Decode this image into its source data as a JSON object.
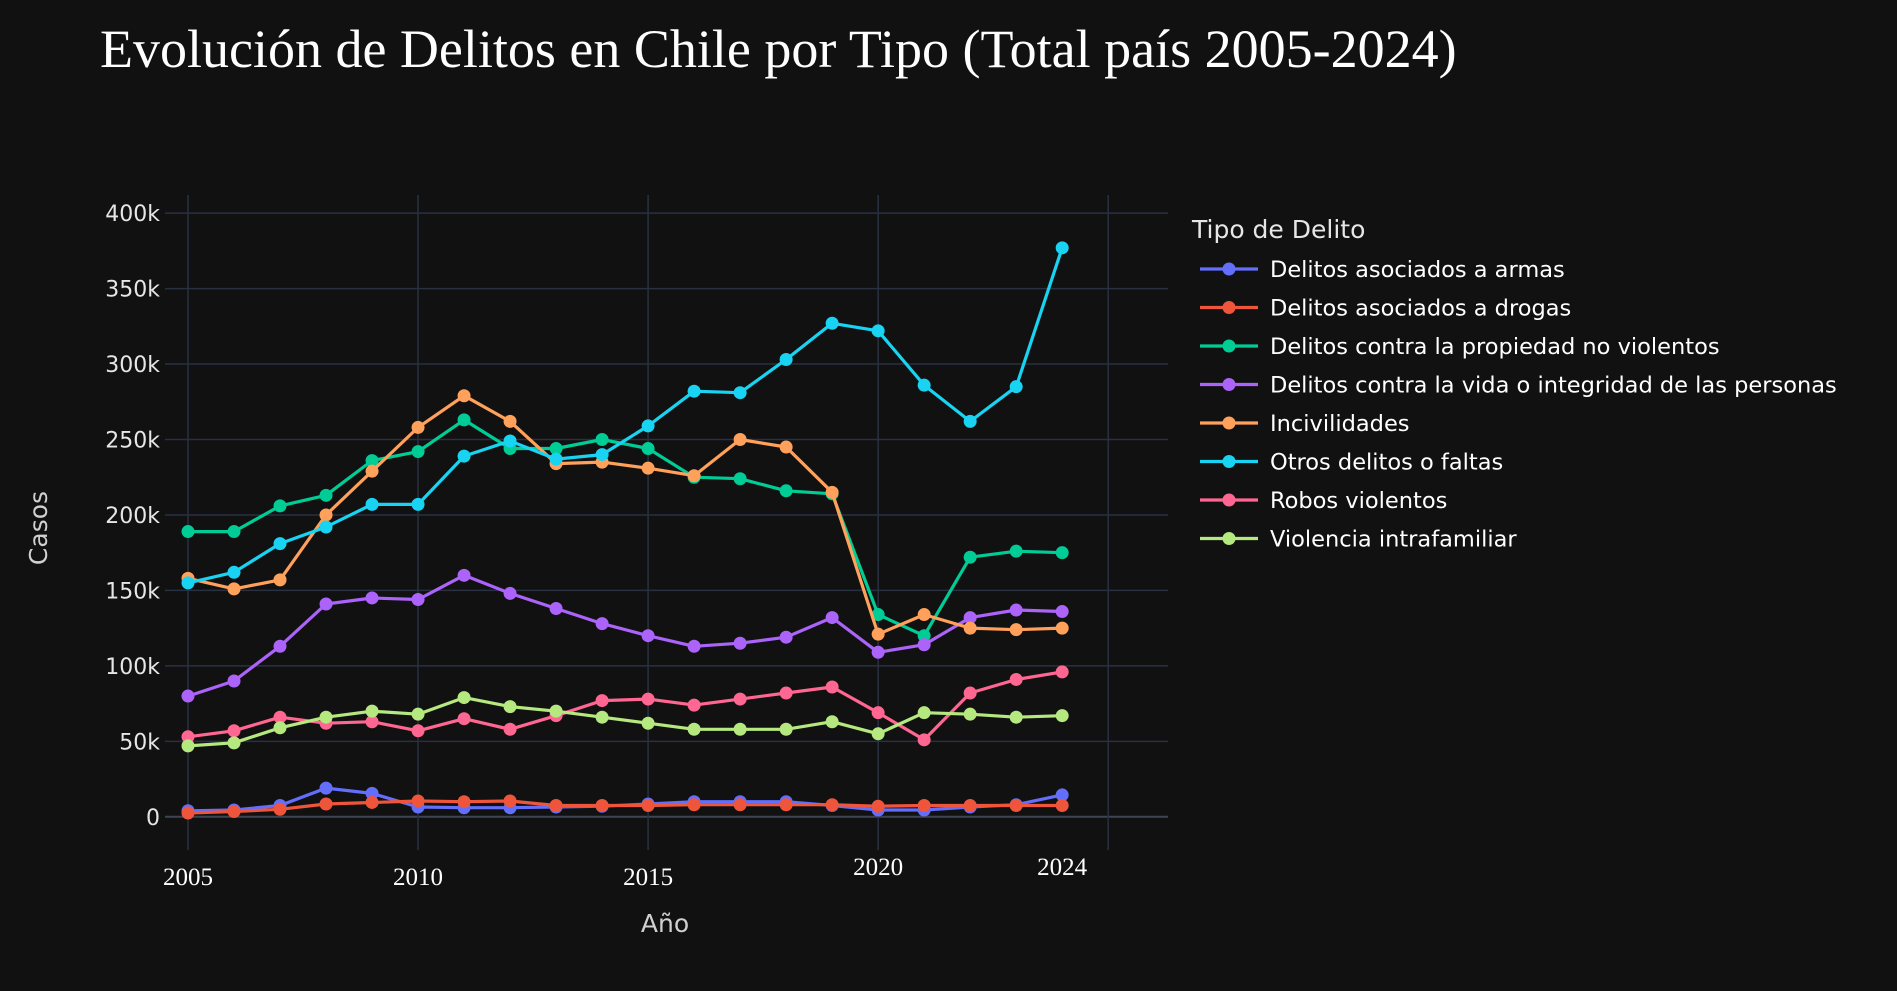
{
  "chart_data": {
    "type": "line",
    "title": "Evolución de Delitos en Chile por Tipo (Total país 2005-2024)",
    "xlabel": "Año",
    "ylabel": "Casos",
    "legend_title": "Tipo de Delito",
    "legend_position": "right",
    "grid": true,
    "xlim": [
      2004.5,
      2026.3
    ],
    "ylim": [
      -22000,
      412000
    ],
    "x_ticks": [
      2005,
      2010,
      2015,
      2020,
      2024
    ],
    "y_ticks": [
      {
        "value": 0,
        "label": "0"
      },
      {
        "value": 50000,
        "label": "50k"
      },
      {
        "value": 100000,
        "label": "100k"
      },
      {
        "value": 150000,
        "label": "150k"
      },
      {
        "value": 200000,
        "label": "200k"
      },
      {
        "value": 250000,
        "label": "250k"
      },
      {
        "value": 300000,
        "label": "300k"
      },
      {
        "value": 350000,
        "label": "350k"
      },
      {
        "value": 400000,
        "label": "400k"
      }
    ],
    "x": [
      2005,
      2006,
      2007,
      2008,
      2009,
      2010,
      2011,
      2012,
      2013,
      2014,
      2015,
      2016,
      2017,
      2018,
      2019,
      2020,
      2021,
      2022,
      2023,
      2024
    ],
    "series": [
      {
        "name": "Delitos asociados a armas",
        "color": "#636efa",
        "values": [
          4000,
          4500,
          7500,
          19000,
          15500,
          6500,
          6000,
          6000,
          6500,
          7000,
          8500,
          10000,
          10000,
          10000,
          7500,
          4500,
          4500,
          6500,
          8000,
          14500
        ]
      },
      {
        "name": "Delitos asociados a drogas",
        "color": "#ef553b",
        "values": [
          2500,
          3500,
          5000,
          8500,
          9500,
          10500,
          10000,
          10500,
          7500,
          7500,
          7500,
          8000,
          8000,
          8000,
          8000,
          7000,
          7500,
          7500,
          7500,
          7500
        ]
      },
      {
        "name": "Delitos contra la propiedad no violentos",
        "color": "#00cc96",
        "values": [
          189000,
          189000,
          206000,
          213000,
          236000,
          242000,
          263000,
          244000,
          244000,
          250000,
          244000,
          225000,
          224000,
          216000,
          214000,
          134000,
          120000,
          172000,
          176000,
          175000
        ]
      },
      {
        "name": "Delitos contra la vida o integridad de las personas",
        "color": "#ab63fa",
        "values": [
          80000,
          90000,
          113000,
          141000,
          145000,
          144000,
          160000,
          148000,
          138000,
          128000,
          120000,
          113000,
          115000,
          119000,
          132000,
          109000,
          114000,
          132000,
          137000,
          136000
        ]
      },
      {
        "name": "Incivilidades",
        "color": "#ffa15a",
        "values": [
          158000,
          151000,
          157000,
          200000,
          229000,
          258000,
          279000,
          262000,
          234000,
          235000,
          231000,
          226000,
          250000,
          245000,
          215000,
          121000,
          134000,
          125000,
          124000,
          125000
        ]
      },
      {
        "name": "Otros delitos o faltas",
        "color": "#19d3f3",
        "values": [
          155000,
          162000,
          181000,
          192000,
          207000,
          207000,
          239000,
          249000,
          237000,
          240000,
          259000,
          282000,
          281000,
          303000,
          327000,
          322000,
          286000,
          262000,
          285000,
          377000
        ]
      },
      {
        "name": "Robos violentos",
        "color": "#ff6692",
        "values": [
          53000,
          57000,
          66000,
          62000,
          63000,
          57000,
          65000,
          58000,
          67000,
          77000,
          78000,
          74000,
          78000,
          82000,
          86000,
          69000,
          51000,
          82000,
          91000,
          96000
        ]
      },
      {
        "name": "Violencia intrafamiliar",
        "color": "#b6e880",
        "values": [
          47000,
          49000,
          59000,
          66000,
          70000,
          68000,
          79000,
          73000,
          70000,
          66000,
          62000,
          58000,
          58000,
          58000,
          63000,
          55000,
          69000,
          68000,
          66000,
          67000
        ]
      }
    ]
  }
}
